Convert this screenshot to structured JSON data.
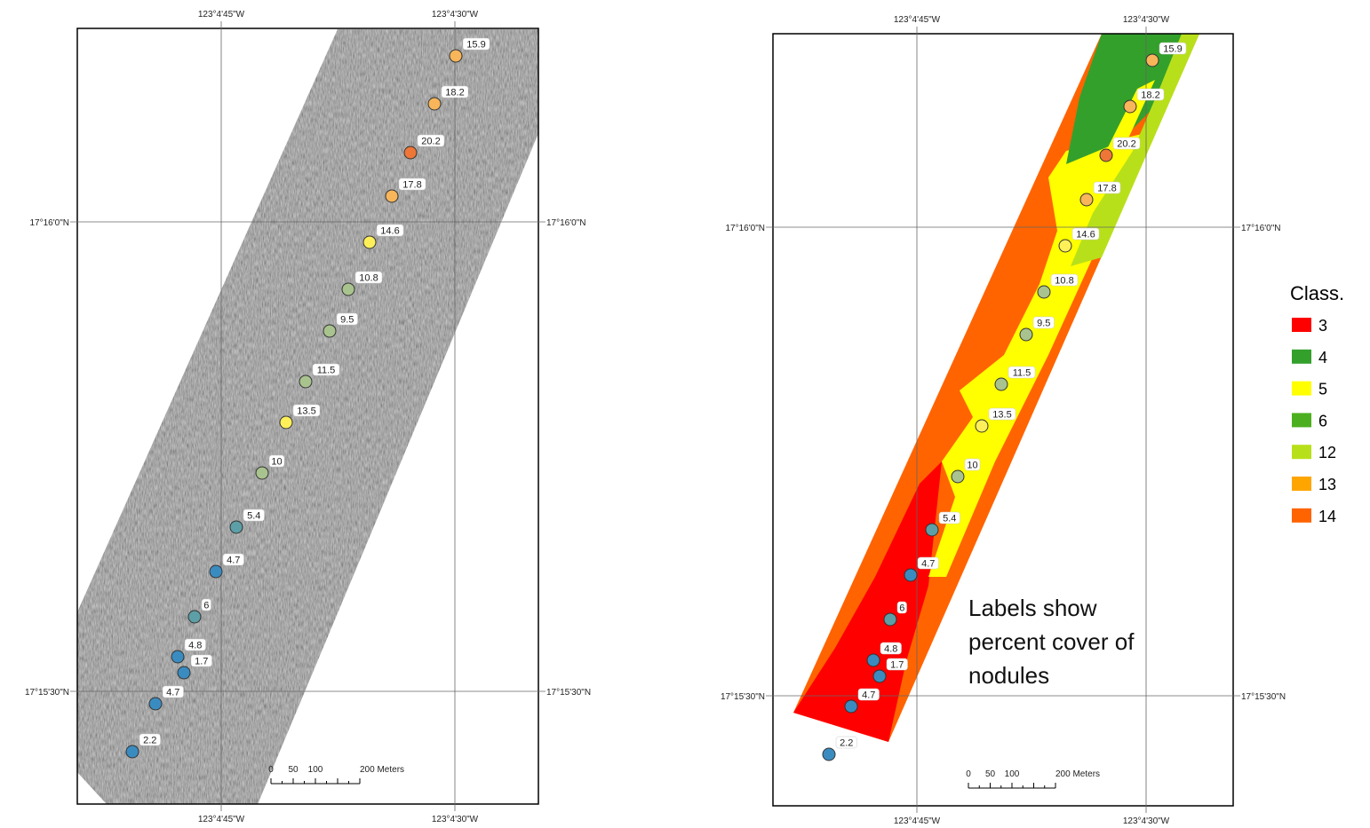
{
  "panels": [
    {
      "top_labels": [
        "123°4'45\"W",
        "123°4'30\"W"
      ],
      "bottom_labels": [
        "123°4'45\"W",
        "123°4'30\"W"
      ],
      "left_labels": [
        "17°16'0\"N",
        "17°15'30\"N"
      ],
      "right_labels": [
        "17°16'0\"N",
        "17°15'30\"N"
      ],
      "points": [
        15.9,
        18.2,
        20.2,
        17.8,
        14.6,
        10.8,
        9.5,
        11.5,
        13.5,
        10,
        5.4,
        4.7,
        6,
        4.8,
        1.7,
        4.7,
        2.2
      ],
      "scale_bar": [
        "0",
        "50",
        "100",
        "200 Meters"
      ]
    },
    {
      "top_labels": [
        "123°4'45\"W",
        "123°4'30\"W"
      ],
      "bottom_labels": [
        "123°4'45\"W",
        "123°4'30\"W"
      ],
      "left_labels": [
        "17°16'0\"N",
        "17°15'30\"N"
      ],
      "right_labels": [
        "17°16'0\"N",
        "17°15'30\"N"
      ],
      "points": [
        15.9,
        18.2,
        20.2,
        17.8,
        14.6,
        10.8,
        9.5,
        11.5,
        13.5,
        10,
        5.4,
        4.7,
        6,
        4.8,
        1.7,
        4.7,
        2.2
      ],
      "scale_bar": [
        "0",
        "50",
        "100",
        "200 Meters"
      ]
    }
  ],
  "legend": {
    "title": "Class.",
    "items": [
      {
        "label": "3",
        "color": "#ff0000"
      },
      {
        "label": "4",
        "color": "#33a02c"
      },
      {
        "label": "5",
        "color": "#ffff00"
      },
      {
        "label": "6",
        "color": "#4caf1f"
      },
      {
        "label": "12",
        "color": "#b8e01a"
      },
      {
        "label": "13",
        "color": "#ffa500"
      },
      {
        "label": "14",
        "color": "#ff6400"
      }
    ]
  },
  "annotation": "Labels show percent cover of nodules"
}
